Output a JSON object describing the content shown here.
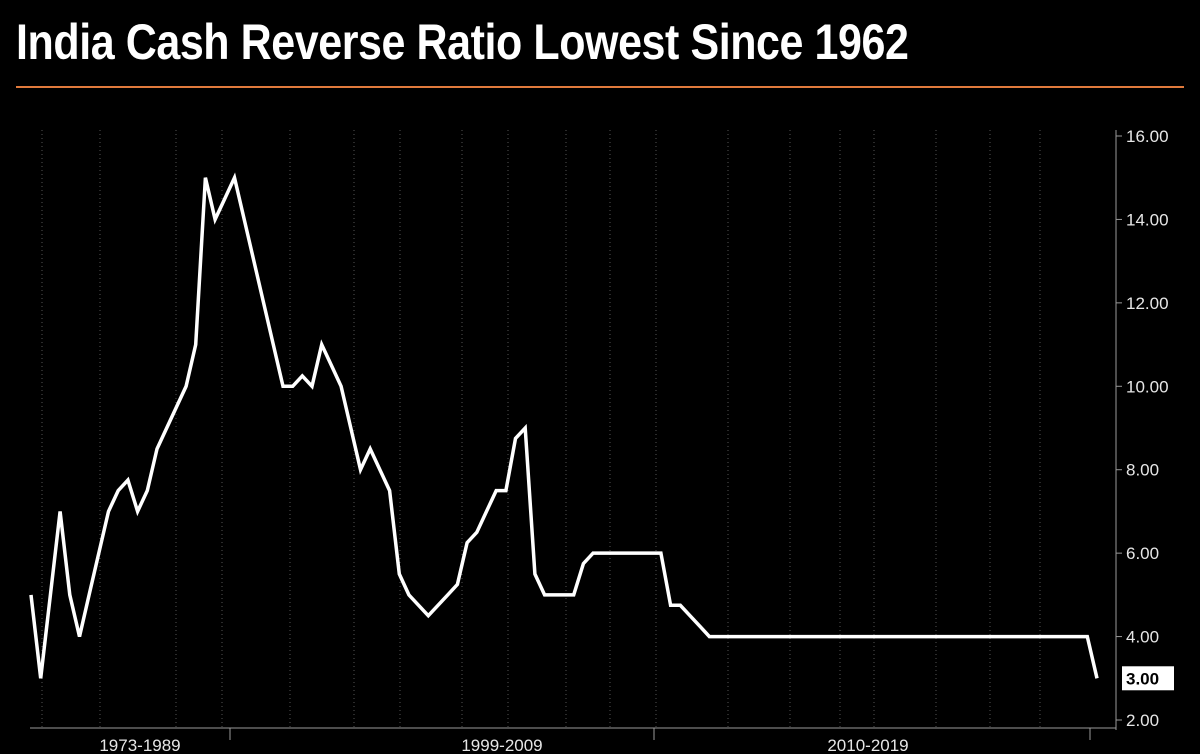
{
  "title": "India Cash Reverse Ratio Lowest Since 1962",
  "colors": {
    "background": "#000000",
    "accent_rule": "#e07a3c",
    "line": "#ffffff",
    "grid": "#555555"
  },
  "chart_data": {
    "type": "line",
    "title": "India Cash Reverse Ratio Lowest Since 1962",
    "xlabel": "",
    "ylabel": "",
    "ylim": [
      2,
      16.3
    ],
    "yticks": [
      "2.00",
      "4.00",
      "6.00",
      "8.00",
      "10.00",
      "12.00",
      "14.00",
      "16.00"
    ],
    "y_axis_position": "right",
    "x_period_labels": [
      "1973-1989",
      "1999-2009",
      "2010-2019"
    ],
    "last_value_label": "3.00",
    "grid": true,
    "series": [
      {
        "values": [
          5,
          3,
          5,
          7,
          5,
          4,
          5,
          6,
          7,
          7.5,
          7.75,
          7,
          7.5,
          8.5,
          9,
          9.5,
          10,
          11,
          15,
          14,
          14.5,
          15,
          14,
          13,
          12,
          11,
          10,
          10,
          10.25,
          10,
          11,
          10.5,
          10,
          9,
          8,
          8.5,
          8,
          7.5,
          5.5,
          5,
          4.75,
          4.5,
          4.75,
          5,
          5.25,
          6.25,
          6.5,
          7,
          7.5,
          7.5,
          8.75,
          9,
          5.5,
          5,
          5,
          5,
          5,
          5.75,
          6,
          6,
          6,
          6,
          6,
          6,
          6,
          6,
          4.75,
          4.75,
          4.5,
          4.25,
          4,
          4,
          4,
          4,
          4,
          4,
          4,
          4,
          4,
          4,
          4,
          4,
          4,
          4,
          4,
          4,
          4,
          4,
          4,
          4,
          4,
          4,
          4,
          4,
          4,
          4,
          4,
          4,
          4,
          4,
          4,
          4,
          4,
          4,
          4,
          4,
          4,
          4,
          4,
          4,
          3
        ]
      }
    ]
  }
}
